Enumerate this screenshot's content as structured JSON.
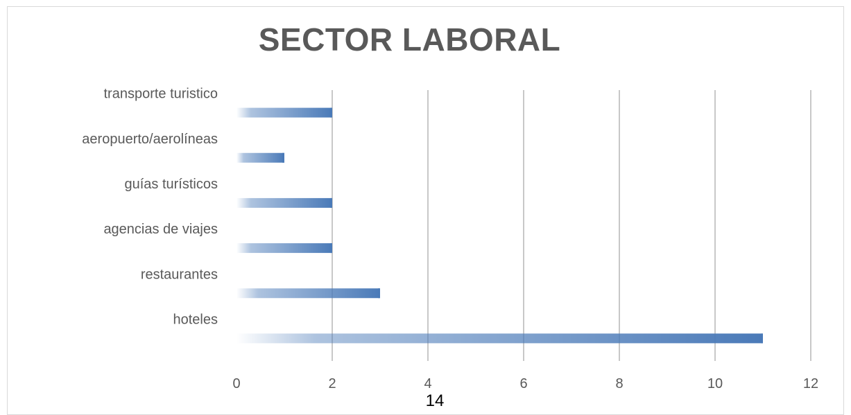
{
  "chart_data": {
    "type": "bar",
    "orientation": "horizontal",
    "title": "SECTOR LABORAL",
    "categories": [
      "transporte turistico",
      "aeropuerto/aerolíneas",
      "guías turísticos",
      "agencias de viajes",
      "restaurantes",
      "hoteles"
    ],
    "values": [
      2,
      1,
      2,
      2,
      3,
      11
    ],
    "xlim": [
      0,
      12
    ],
    "xticks": [
      "0",
      "2",
      "4",
      "6",
      "8",
      "10",
      "12"
    ],
    "grid": true,
    "legend": "none",
    "bar_color": "#4a7ab8",
    "grid_color": "#c8c8c8"
  },
  "page_number": "14"
}
